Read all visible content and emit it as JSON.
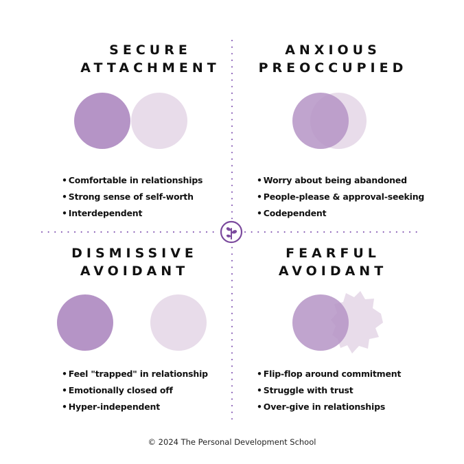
{
  "colors": {
    "dark_purple": "#b594c6",
    "light_purple": "#e8dcea",
    "divider": "#7c4dae",
    "logo": "#7b4a9d"
  },
  "quadrants": [
    {
      "id": "secure",
      "title_lines": [
        "SECURE",
        "ATTACHMENT"
      ],
      "bullets": [
        "Comfortable in relationships",
        "Strong sense of self-worth",
        "Interdependent"
      ]
    },
    {
      "id": "anxious",
      "title_lines": [
        "ANXIOUS",
        "PREOCCUPIED"
      ],
      "bullets": [
        "Worry about being abandoned",
        "People-please & approval-seeking",
        "Codependent"
      ]
    },
    {
      "id": "dismissive",
      "title_lines": [
        "DISMISSIVE",
        "AVOIDANT"
      ],
      "bullets": [
        "Feel \"trapped\" in relationship",
        "Emotionally closed off",
        "Hyper-independent"
      ]
    },
    {
      "id": "fearful",
      "title_lines": [
        "FEARFUL",
        "AVOIDANT"
      ],
      "bullets": [
        "Flip-flop around commitment",
        "Struggle with trust",
        "Over-give in relationships"
      ]
    }
  ],
  "center_icon": "sprout-logo-icon",
  "footer": "© 2024 The Personal Development School"
}
